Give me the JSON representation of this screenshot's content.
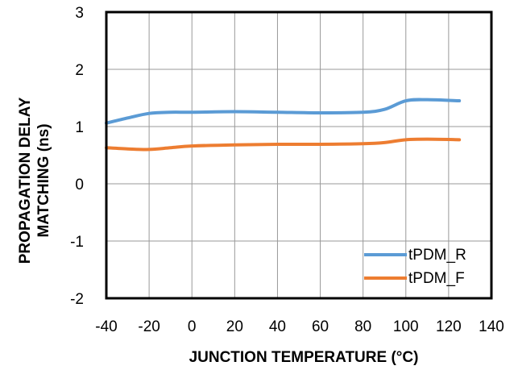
{
  "chart_data": {
    "type": "line",
    "xlabel": "JUNCTION TEMPERATURE (°C)",
    "ylabel_line1": "PROPAGATION DELAY",
    "ylabel_line2": "MATCHING (ns)",
    "xlim": [
      -40,
      140
    ],
    "ylim": [
      -2,
      3
    ],
    "xticks": [
      -40,
      -20,
      0,
      20,
      40,
      60,
      80,
      100,
      120,
      140
    ],
    "yticks": [
      -2,
      -1,
      0,
      1,
      2,
      3
    ],
    "grid": true,
    "legend_position": "bottom-right",
    "series": [
      {
        "name": "tPDM_R",
        "color": "#5b9bd5",
        "x": [
          -40,
          -30,
          -20,
          -10,
          0,
          20,
          40,
          60,
          80,
          90,
          100,
          110,
          125
        ],
        "y": [
          1.06,
          1.15,
          1.23,
          1.25,
          1.25,
          1.26,
          1.25,
          1.24,
          1.25,
          1.3,
          1.45,
          1.47,
          1.45
        ]
      },
      {
        "name": "tPDM_F",
        "color": "#ed7d31",
        "x": [
          -40,
          -30,
          -20,
          -10,
          0,
          20,
          40,
          60,
          80,
          90,
          100,
          110,
          125
        ],
        "y": [
          0.63,
          0.61,
          0.6,
          0.63,
          0.66,
          0.68,
          0.69,
          0.69,
          0.7,
          0.72,
          0.77,
          0.78,
          0.77
        ]
      }
    ]
  }
}
